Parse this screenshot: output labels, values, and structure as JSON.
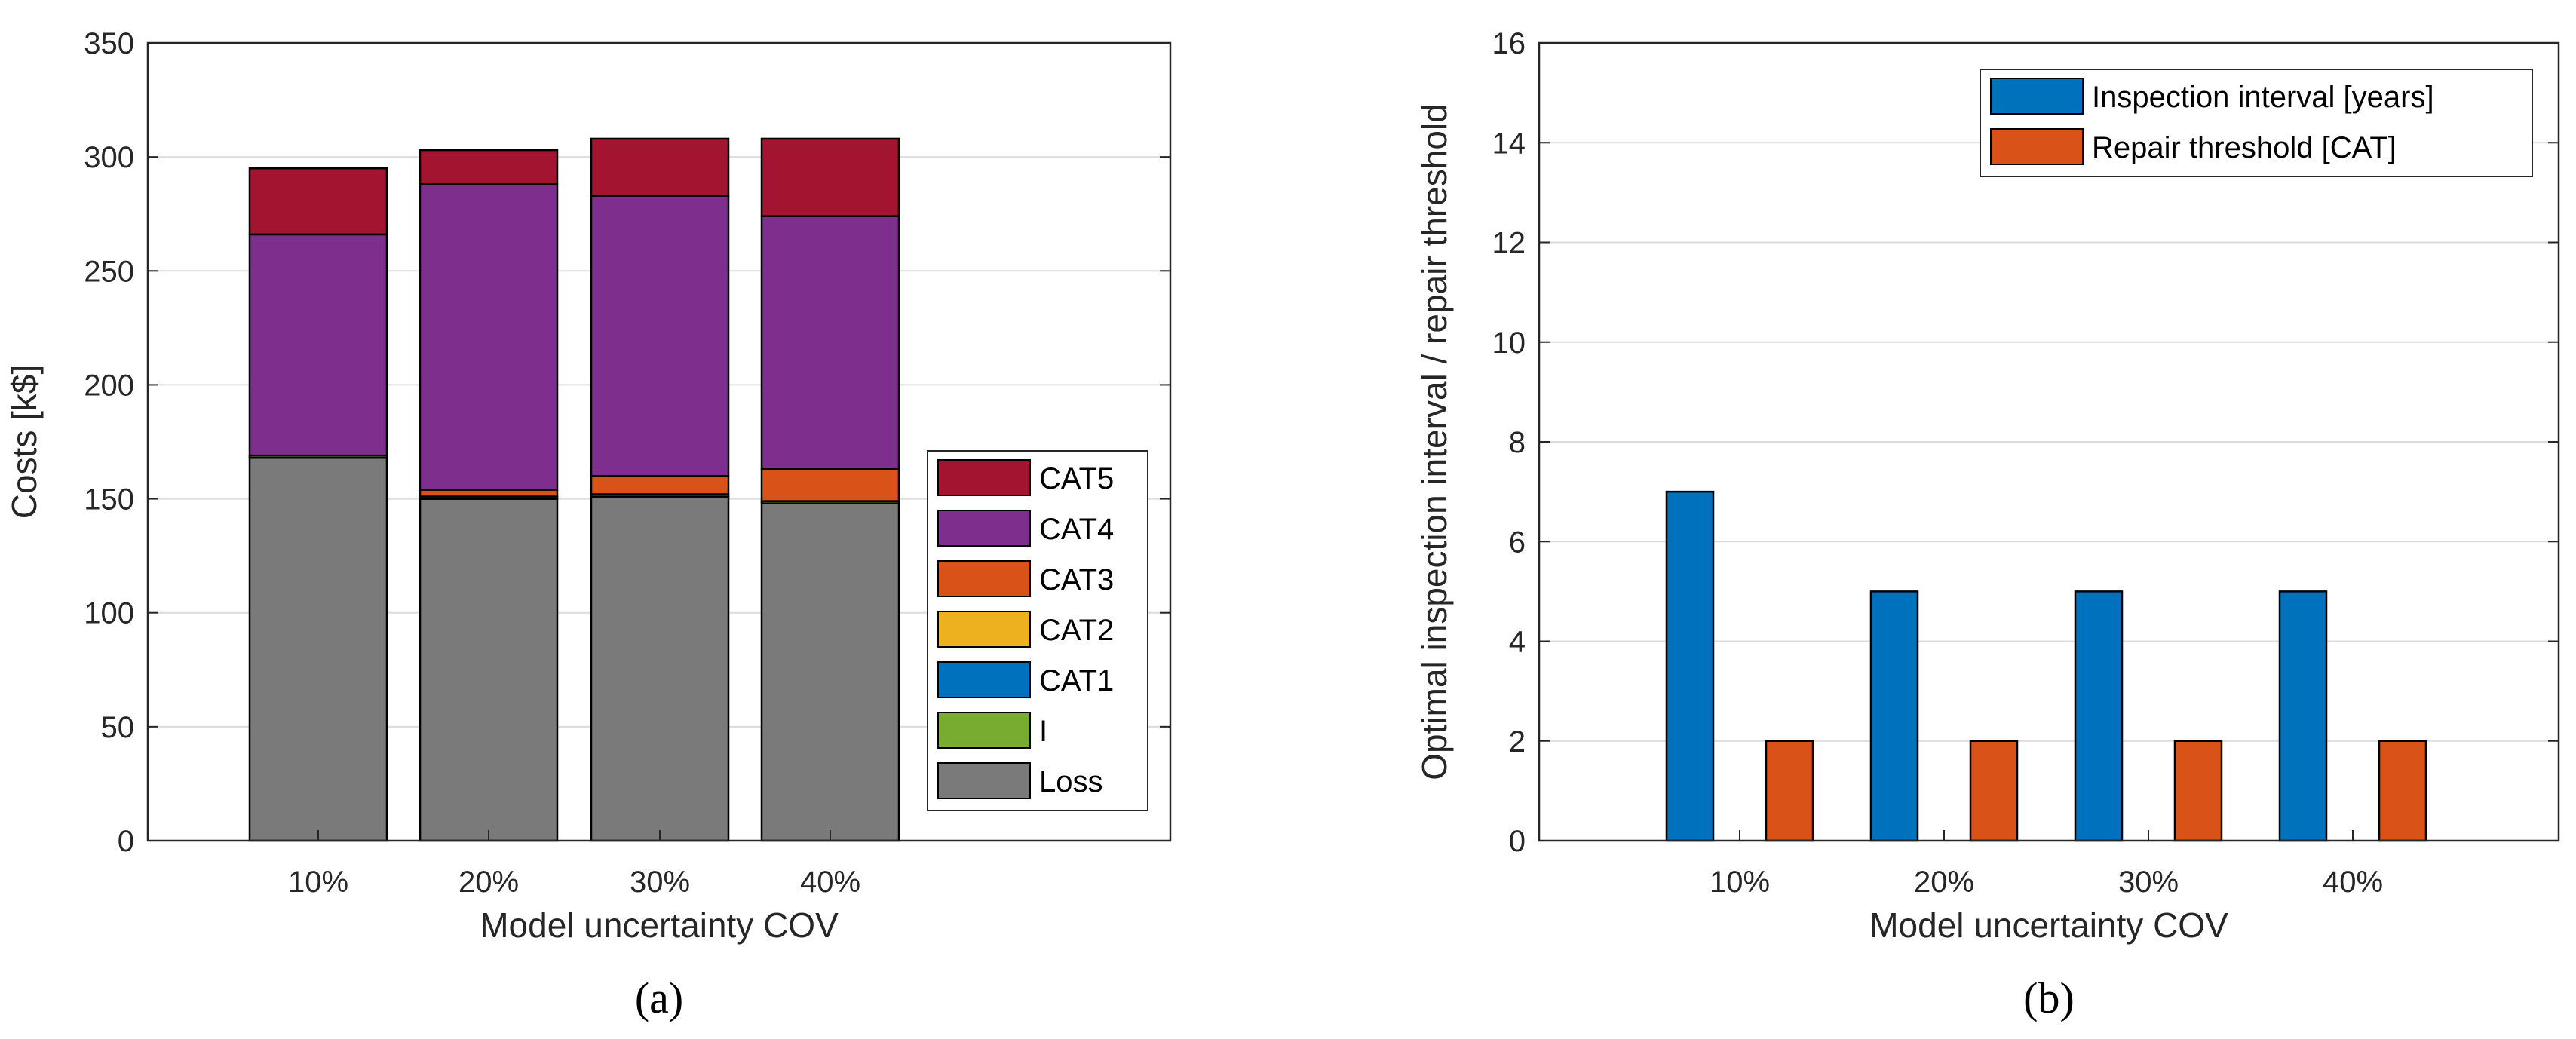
{
  "chart_data": [
    {
      "type": "bar",
      "stacked": true,
      "panel_label": "(a)",
      "title": "",
      "xlabel": "Model uncertainty COV",
      "ylabel": "Costs [k$]",
      "categories": [
        "10%",
        "20%",
        "30%",
        "40%"
      ],
      "ylim": [
        0,
        350
      ],
      "yticks": [
        0,
        50,
        100,
        150,
        200,
        250,
        300,
        350
      ],
      "grid": true,
      "legend_position": "bottom-right",
      "series": [
        {
          "name": "Loss",
          "color": "#7a7a7a",
          "values": [
            168,
            150,
            151,
            148
          ]
        },
        {
          "name": "I",
          "color": "#77ac30",
          "values": [
            1,
            1,
            1,
            1
          ]
        },
        {
          "name": "CAT1",
          "color": "#0072bd",
          "values": [
            0,
            0,
            0,
            0
          ]
        },
        {
          "name": "CAT2",
          "color": "#edb120",
          "values": [
            0,
            0,
            0,
            0
          ]
        },
        {
          "name": "CAT3",
          "color": "#d95319",
          "values": [
            0,
            3,
            8,
            14
          ]
        },
        {
          "name": "CAT4",
          "color": "#7e2f8e",
          "values": [
            97,
            134,
            123,
            111
          ]
        },
        {
          "name": "CAT5",
          "color": "#a2142f",
          "values": [
            29,
            15,
            25,
            34
          ]
        }
      ]
    },
    {
      "type": "bar",
      "stacked": false,
      "panel_label": "(b)",
      "title": "",
      "xlabel": "Model uncertainty COV",
      "ylabel": "Optimal inspection interval / repair threshold",
      "categories": [
        "10%",
        "20%",
        "30%",
        "40%"
      ],
      "ylim": [
        0,
        16
      ],
      "yticks": [
        0,
        2,
        4,
        6,
        8,
        10,
        12,
        14,
        16
      ],
      "grid": true,
      "legend_position": "top-right",
      "series": [
        {
          "name": "Inspection interval [years]",
          "color": "#0072bd",
          "values": [
            7,
            5,
            5,
            5
          ]
        },
        {
          "name": "Repair threshold [CAT]",
          "color": "#d95319",
          "values": [
            2,
            2,
            2,
            2
          ]
        }
      ]
    }
  ]
}
